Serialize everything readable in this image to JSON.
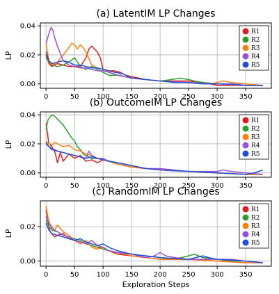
{
  "chart_data": [
    {
      "type": "line",
      "title": "(a) LatentIM LP Changes",
      "xlabel": "",
      "ylabel": "LP",
      "xlim": [
        -10,
        395
      ],
      "ylim": [
        -0.003,
        0.042
      ],
      "xticks": [
        0,
        50,
        100,
        150,
        200,
        250,
        300,
        350
      ],
      "yticks": [
        0.0,
        0.02,
        0.04
      ],
      "ytick_labels": [
        "0.00",
        "0.02",
        "0.04"
      ],
      "grid": true,
      "legend_position": "top-right",
      "series": [
        {
          "name": "R1",
          "color": "#e41a1c",
          "x": [
            0,
            5,
            10,
            20,
            30,
            40,
            50,
            60,
            70,
            75,
            80,
            85,
            90,
            95,
            100,
            110,
            120,
            130,
            140,
            150,
            175,
            200,
            225,
            250,
            275,
            300,
            325,
            350,
            380
          ],
          "y": [
            0.02,
            0.014,
            0.012,
            0.014,
            0.013,
            0.012,
            0.012,
            0.012,
            0.018,
            0.024,
            0.026,
            0.024,
            0.022,
            0.018,
            0.01,
            0.009,
            0.009,
            0.008,
            0.006,
            0.005,
            0.003,
            0.002,
            0.002,
            0.002,
            0.001,
            -0.001,
            -0.001,
            -0.001,
            -0.001
          ]
        },
        {
          "name": "R2",
          "color": "#2ca02c",
          "x": [
            0,
            5,
            10,
            20,
            30,
            40,
            50,
            55,
            60,
            70,
            80,
            90,
            100,
            110,
            120,
            130,
            140,
            150,
            175,
            200,
            220,
            235,
            250,
            260,
            275,
            300,
            325,
            350,
            380
          ],
          "y": [
            0.018,
            0.015,
            0.013,
            0.012,
            0.013,
            0.015,
            0.018,
            0.015,
            0.012,
            0.01,
            0.012,
            0.01,
            0.008,
            0.006,
            0.006,
            0.006,
            0.005,
            0.004,
            0.003,
            0.002,
            0.003,
            0.004,
            0.003,
            0.002,
            0.001,
            0.0,
            0.0,
            -0.001,
            -0.001
          ]
        },
        {
          "name": "R3",
          "color": "#ff7f0e",
          "x": [
            0,
            5,
            10,
            20,
            30,
            40,
            45,
            50,
            55,
            60,
            65,
            70,
            80,
            90,
            100,
            110,
            125,
            150,
            175,
            200,
            250,
            290,
            300,
            310,
            325,
            350,
            380
          ],
          "y": [
            0.028,
            0.016,
            0.013,
            0.015,
            0.02,
            0.025,
            0.028,
            0.027,
            0.024,
            0.027,
            0.025,
            0.022,
            0.013,
            0.011,
            0.01,
            0.008,
            0.006,
            0.004,
            0.003,
            0.002,
            0.001,
            0.0,
            0.001,
            0.002,
            0.001,
            0.0,
            -0.001
          ]
        },
        {
          "name": "R4",
          "color": "#9a4fd6",
          "x": [
            0,
            3,
            6,
            9,
            12,
            15,
            20,
            25,
            30,
            40,
            50,
            60,
            70,
            80,
            90,
            100,
            110,
            125,
            150,
            175,
            200,
            250,
            300,
            350,
            380
          ],
          "y": [
            0.028,
            0.032,
            0.036,
            0.039,
            0.037,
            0.032,
            0.026,
            0.021,
            0.016,
            0.013,
            0.012,
            0.011,
            0.011,
            0.01,
            0.009,
            0.009,
            0.008,
            0.006,
            0.004,
            0.003,
            0.002,
            0.001,
            0.0,
            -0.001,
            -0.001
          ]
        },
        {
          "name": "R5",
          "color": "#1f4fd6",
          "x": [
            0,
            5,
            10,
            20,
            30,
            40,
            50,
            60,
            70,
            80,
            90,
            100,
            110,
            120,
            135,
            150,
            175,
            200,
            225,
            250,
            275,
            300,
            325,
            350,
            380
          ],
          "y": [
            0.022,
            0.016,
            0.014,
            0.015,
            0.016,
            0.015,
            0.013,
            0.013,
            0.012,
            0.011,
            0.011,
            0.01,
            0.009,
            0.008,
            0.007,
            0.004,
            0.003,
            0.002,
            0.001,
            0.001,
            0.0,
            0.0,
            0.0,
            -0.001,
            -0.001
          ]
        }
      ]
    },
    {
      "type": "line",
      "title": "(b) OutcomeIM LP Changes",
      "xlabel": "",
      "ylabel": "LP",
      "xlim": [
        -10,
        395
      ],
      "ylim": [
        -0.003,
        0.042
      ],
      "xticks": [
        0,
        50,
        100,
        150,
        200,
        250,
        300,
        350
      ],
      "yticks": [
        0.0,
        0.02,
        0.04
      ],
      "ytick_labels": [
        "0.00",
        "0.02",
        "0.04"
      ],
      "grid": true,
      "legend_position": "top-right",
      "series": [
        {
          "name": "R1",
          "color": "#e41a1c",
          "x": [
            0,
            5,
            10,
            15,
            20,
            25,
            30,
            40,
            50,
            60,
            70,
            80,
            90,
            100,
            110,
            125,
            150,
            175,
            200,
            250,
            300,
            350,
            380
          ],
          "y": [
            0.034,
            0.02,
            0.018,
            0.015,
            0.007,
            0.014,
            0.008,
            0.013,
            0.01,
            0.012,
            0.008,
            0.009,
            0.007,
            0.009,
            0.008,
            0.006,
            0.004,
            0.003,
            0.002,
            0.001,
            0.0,
            -0.001,
            -0.001
          ]
        },
        {
          "name": "R2",
          "color": "#2ca02c",
          "x": [
            0,
            3,
            6,
            10,
            15,
            20,
            25,
            30,
            35,
            40,
            45,
            50,
            55,
            60,
            65,
            70,
            80,
            90,
            100,
            125,
            150,
            175,
            200,
            250,
            300,
            350,
            380
          ],
          "y": [
            0.03,
            0.036,
            0.038,
            0.04,
            0.039,
            0.037,
            0.035,
            0.033,
            0.03,
            0.027,
            0.024,
            0.022,
            0.018,
            0.016,
            0.013,
            0.012,
            0.01,
            0.01,
            0.009,
            0.007,
            0.005,
            0.003,
            0.002,
            0.001,
            0.0,
            -0.001,
            -0.001
          ]
        },
        {
          "name": "R3",
          "color": "#ff7f0e",
          "x": [
            0,
            5,
            10,
            15,
            20,
            30,
            40,
            50,
            60,
            70,
            80,
            90,
            100,
            110,
            125,
            150,
            175,
            200,
            250,
            300,
            350,
            380
          ],
          "y": [
            0.022,
            0.02,
            0.019,
            0.021,
            0.02,
            0.018,
            0.019,
            0.016,
            0.015,
            0.013,
            0.012,
            0.01,
            0.009,
            0.008,
            0.006,
            0.004,
            0.003,
            0.002,
            0.001,
            0.0,
            -0.001,
            -0.001
          ]
        },
        {
          "name": "R4",
          "color": "#9a4fd6",
          "x": [
            0,
            5,
            10,
            15,
            20,
            30,
            40,
            50,
            60,
            70,
            75,
            80,
            90,
            100,
            110,
            125,
            150,
            175,
            200,
            250,
            300,
            310,
            325,
            350,
            380
          ],
          "y": [
            0.02,
            0.018,
            0.017,
            0.016,
            0.015,
            0.014,
            0.013,
            0.012,
            0.011,
            0.01,
            0.015,
            0.012,
            0.01,
            0.01,
            0.008,
            0.007,
            0.005,
            0.003,
            0.003,
            0.001,
            0.001,
            0.002,
            0.001,
            0.0,
            -0.001
          ]
        },
        {
          "name": "R5",
          "color": "#1f4fd6",
          "x": [
            0,
            5,
            10,
            20,
            30,
            40,
            50,
            60,
            70,
            80,
            90,
            100,
            110,
            125,
            150,
            175,
            200,
            250,
            300,
            350,
            365,
            380
          ],
          "y": [
            0.021,
            0.018,
            0.016,
            0.015,
            0.014,
            0.013,
            0.012,
            0.011,
            0.01,
            0.011,
            0.01,
            0.009,
            0.008,
            0.007,
            0.005,
            0.003,
            0.002,
            0.001,
            0.0,
            -0.001,
            0.0,
            0.002
          ]
        }
      ]
    },
    {
      "type": "line",
      "title": "(c) RandomIM LP Changes",
      "xlabel": "Exploration Steps",
      "ylabel": "LP",
      "xlim": [
        -10,
        395
      ],
      "ylim": [
        -0.003,
        0.035
      ],
      "xticks": [
        0,
        50,
        100,
        150,
        200,
        250,
        300,
        350
      ],
      "yticks": [
        0.0,
        0.02
      ],
      "ytick_labels": [
        "0.00",
        "0.02"
      ],
      "grid": true,
      "legend_position": "top-right",
      "series": [
        {
          "name": "R1",
          "color": "#e41a1c",
          "x": [
            0,
            3,
            6,
            10,
            15,
            20,
            30,
            40,
            50,
            60,
            70,
            80,
            90,
            100,
            110,
            125,
            150,
            175,
            200,
            250,
            300,
            350,
            380
          ],
          "y": [
            0.03,
            0.024,
            0.018,
            0.016,
            0.014,
            0.015,
            0.016,
            0.013,
            0.012,
            0.011,
            0.01,
            0.009,
            0.008,
            0.008,
            0.006,
            0.004,
            0.003,
            0.002,
            0.001,
            0.001,
            0.0,
            -0.001,
            -0.001
          ]
        },
        {
          "name": "R2",
          "color": "#2ca02c",
          "x": [
            0,
            5,
            10,
            20,
            30,
            40,
            50,
            60,
            70,
            80,
            90,
            100,
            110,
            125,
            150,
            175,
            200,
            225,
            250,
            260,
            275,
            300,
            325,
            350,
            380
          ],
          "y": [
            0.024,
            0.02,
            0.018,
            0.017,
            0.015,
            0.014,
            0.013,
            0.012,
            0.01,
            0.009,
            0.008,
            0.007,
            0.006,
            0.005,
            0.004,
            0.003,
            0.002,
            0.001,
            0.003,
            0.004,
            0.002,
            0.001,
            0.0,
            0.0,
            -0.001
          ]
        },
        {
          "name": "R3",
          "color": "#ff7f0e",
          "x": [
            0,
            3,
            6,
            10,
            15,
            20,
            25,
            30,
            40,
            50,
            60,
            70,
            80,
            90,
            100,
            110,
            125,
            150,
            175,
            200,
            250,
            300,
            350,
            380
          ],
          "y": [
            0.032,
            0.026,
            0.022,
            0.02,
            0.018,
            0.021,
            0.019,
            0.017,
            0.015,
            0.012,
            0.01,
            0.012,
            0.008,
            0.007,
            0.008,
            0.006,
            0.005,
            0.003,
            0.002,
            0.001,
            0.001,
            0.0,
            -0.001,
            -0.001
          ]
        },
        {
          "name": "R4",
          "color": "#9a4fd6",
          "x": [
            0,
            5,
            10,
            20,
            30,
            40,
            50,
            60,
            70,
            80,
            90,
            100,
            110,
            125,
            150,
            175,
            190,
            200,
            210,
            225,
            250,
            300,
            325,
            350,
            380
          ],
          "y": [
            0.026,
            0.022,
            0.019,
            0.017,
            0.015,
            0.014,
            0.012,
            0.011,
            0.01,
            0.012,
            0.009,
            0.008,
            0.006,
            0.005,
            0.004,
            0.002,
            0.003,
            0.005,
            0.003,
            0.002,
            0.001,
            0.001,
            0.001,
            0.0,
            -0.001
          ]
        },
        {
          "name": "R5",
          "color": "#1f4fd6",
          "x": [
            0,
            5,
            10,
            20,
            30,
            40,
            50,
            60,
            70,
            80,
            90,
            100,
            110,
            125,
            150,
            175,
            200,
            250,
            275,
            285,
            300,
            350,
            380
          ],
          "y": [
            0.022,
            0.018,
            0.016,
            0.015,
            0.014,
            0.013,
            0.012,
            0.013,
            0.011,
            0.01,
            0.009,
            0.01,
            0.008,
            0.006,
            0.004,
            0.003,
            0.002,
            0.001,
            0.003,
            0.002,
            0.001,
            0.0,
            -0.001
          ]
        }
      ]
    }
  ]
}
